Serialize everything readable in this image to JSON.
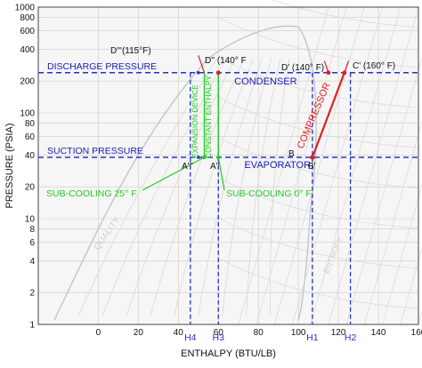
{
  "chart_data": {
    "type": "line",
    "title": "",
    "xlabel": "ENTHALPY (BTU/LB)",
    "ylabel": "PRESSURE (PSIA)",
    "x_ticks": [
      0,
      20,
      40,
      60,
      80,
      100,
      120,
      140,
      160
    ],
    "y_ticks": [
      1,
      2,
      4,
      6,
      8,
      10,
      20,
      40,
      60,
      80,
      100,
      200,
      400,
      600,
      800,
      1000
    ],
    "y_scale": "log",
    "grid": true,
    "series": [
      {
        "name": "",
        "color": "#2233cc",
        "points": [
          {
            "x": 50,
            "y": 240
          },
          {
            "x": 123,
            "y": 240
          },
          {
            "x": 107,
            "y": 38
          },
          {
            "x": 50,
            "y": 38
          }
        ]
      }
    ],
    "reference_lines": [
      {
        "kind": "pressure",
        "value": 240,
        "label": "DISCHARGE PRESSURE"
      },
      {
        "kind": "pressure",
        "value": 38,
        "label": "SUCTION PRESSURE"
      },
      {
        "kind": "enthalpy",
        "value": 46,
        "label": "H4"
      },
      {
        "kind": "enthalpy",
        "value": 60,
        "label": "H3"
      },
      {
        "kind": "enthalpy",
        "value": 107,
        "label": "H1"
      },
      {
        "kind": "enthalpy",
        "value": 126,
        "label": "H2"
      }
    ],
    "region_labels": {
      "condenser": "CONDENSER",
      "evaporator": "EVAPORATOR",
      "compressor": "COMPRESSOR",
      "expansion_device": "EXPANSION DEVICE",
      "constant_enthalpy": "CONSTANT ENTHALPY"
    },
    "point_labels": {
      "d3": "D'''(115°F)",
      "d2": "D'' (140° F",
      "d1": "D' (140° F)",
      "c1": "C' (160° F)",
      "b": "B",
      "b1": "B'",
      "a3": "A'''",
      "a2": "A''"
    },
    "annotations": {
      "subcool_25": "SUB-COOLING 25° F",
      "subcool_0": "SUB-COOLING 0° F"
    },
    "background": {
      "quality_label": "QUALITY",
      "entropy_label": "ENTROPY"
    },
    "colors": {
      "cycle": "#2233cc",
      "pressure_label": "#1a1ab8",
      "annotation_green": "#22cc22",
      "compressor_red": "#e02020",
      "grid": "#cccccc",
      "background_curves": "#d8d8d8"
    }
  }
}
